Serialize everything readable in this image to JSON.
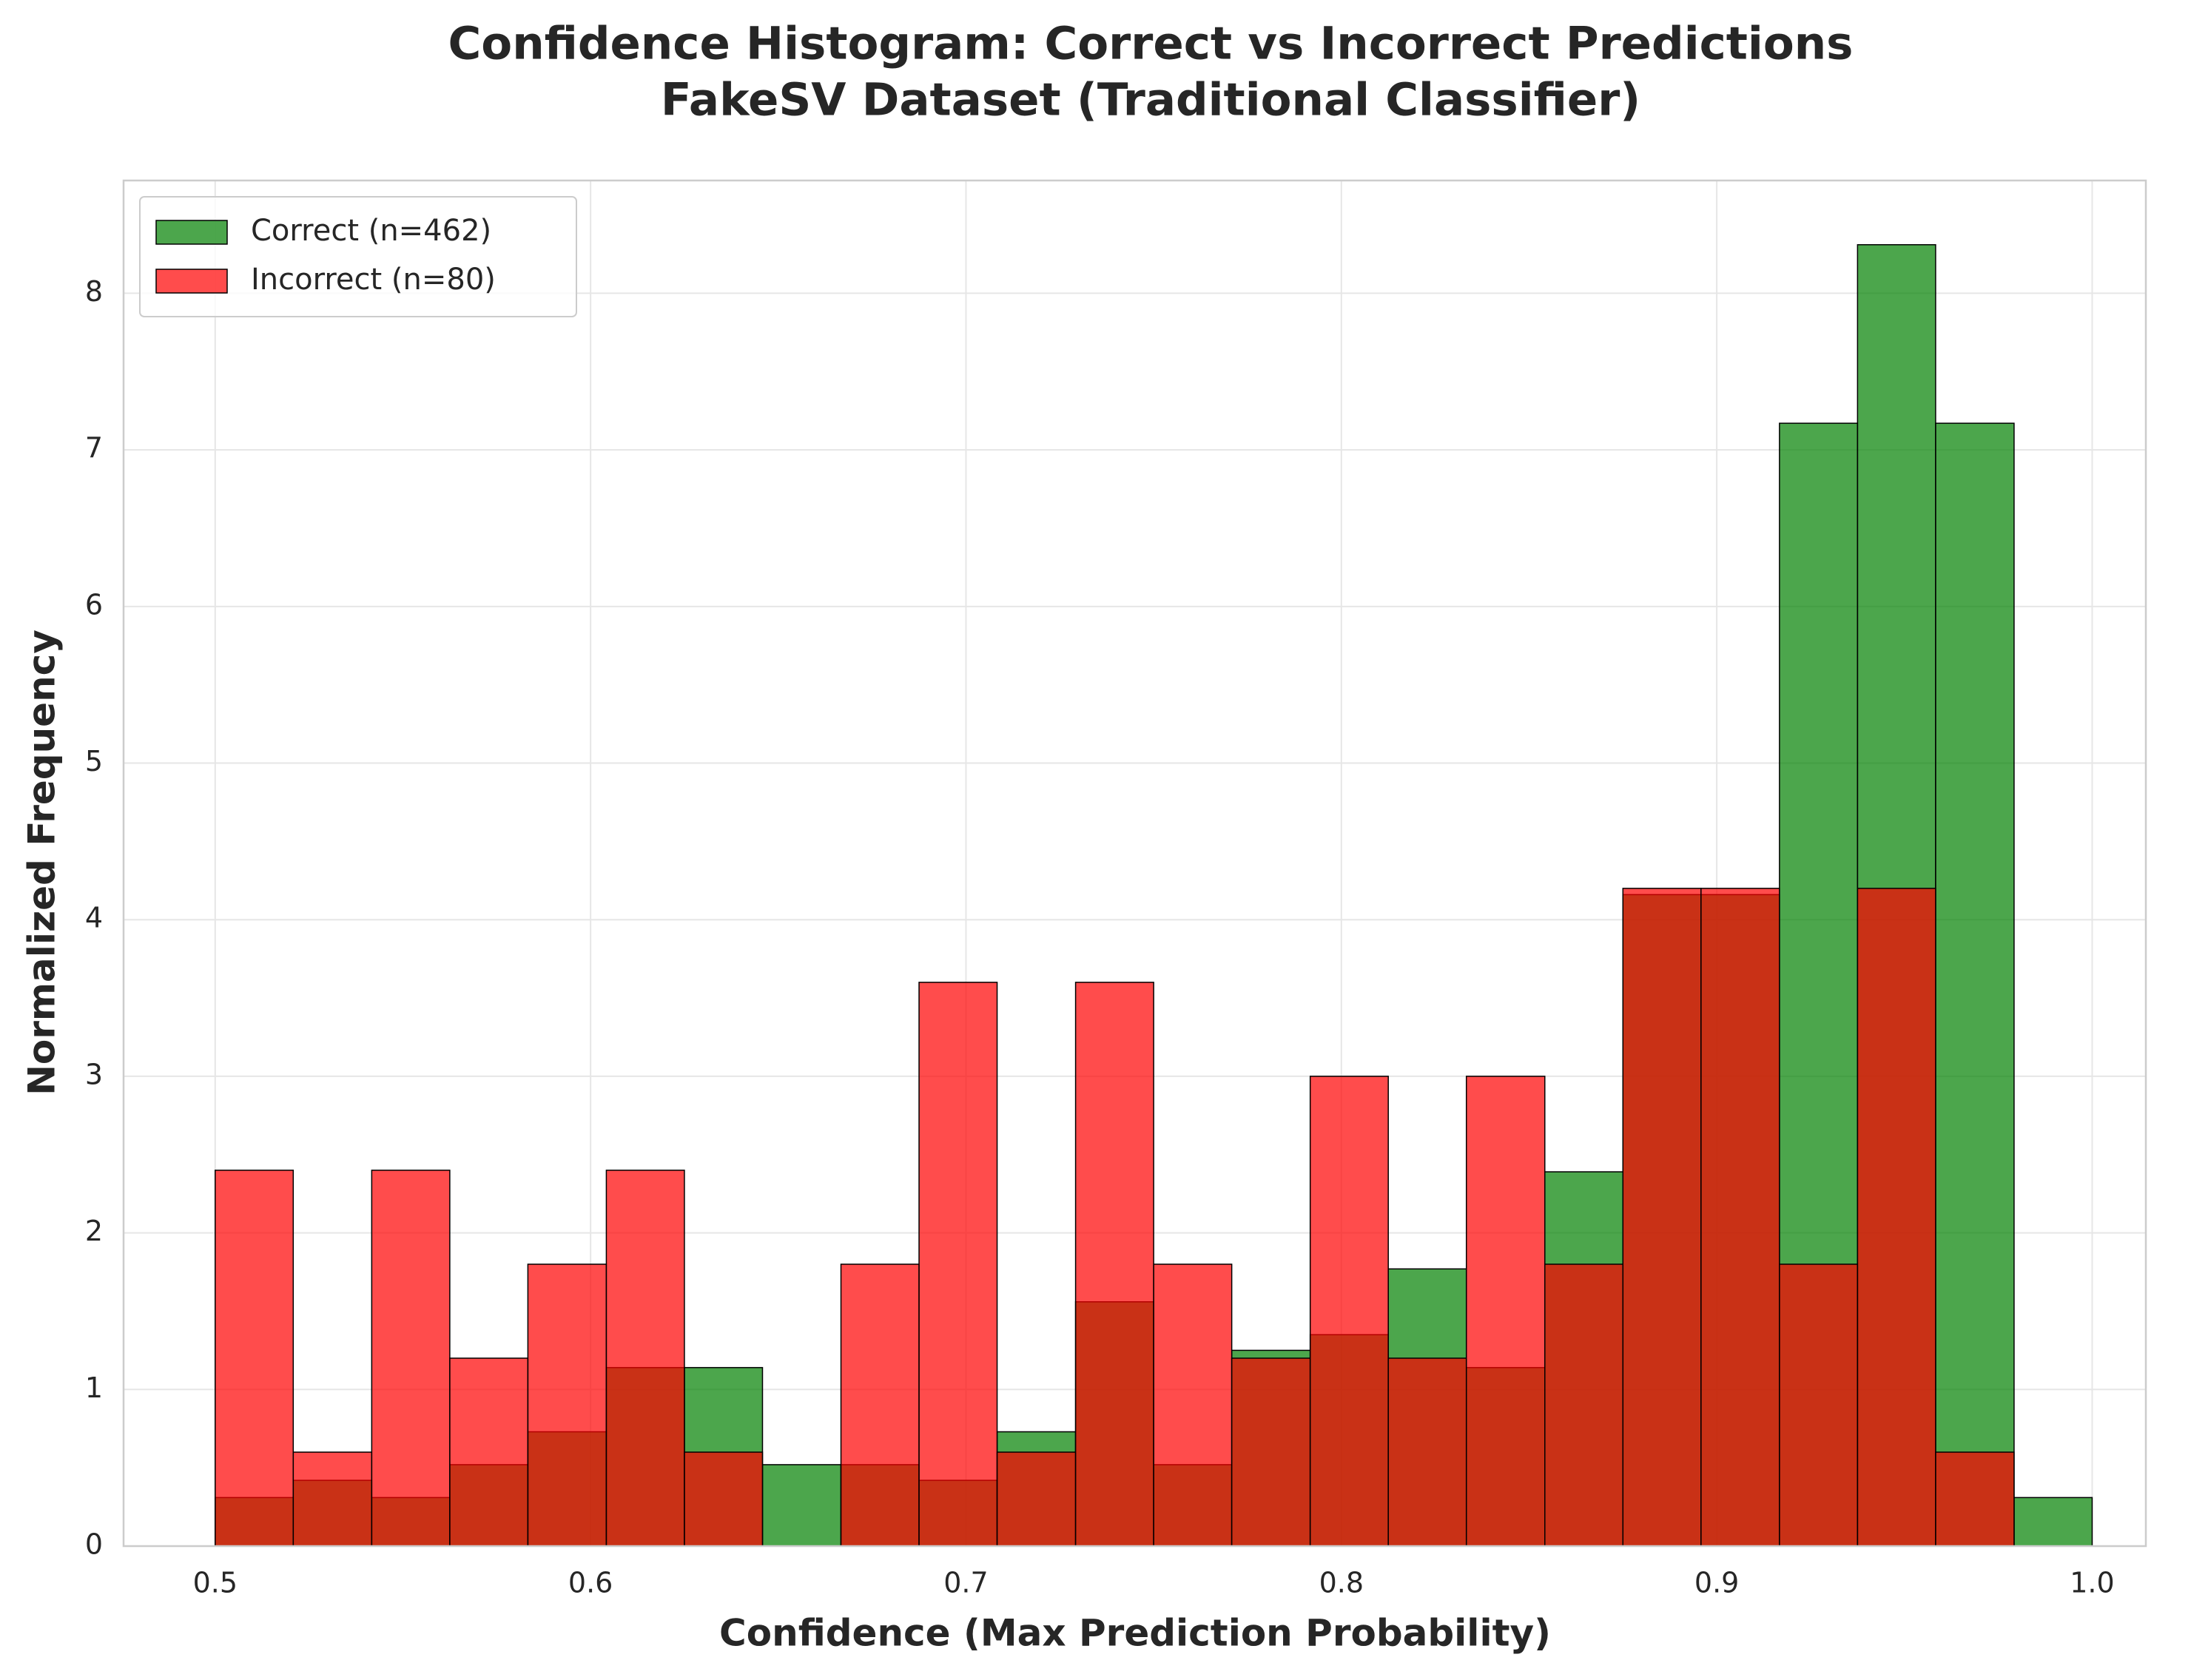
{
  "chart_data": {
    "type": "histogram",
    "title": [
      "Confidence Histogram: Correct vs Incorrect Predictions",
      "FakeSV Dataset (Traditional Classifier)"
    ],
    "xlabel": "Confidence (Max Prediction Probability)",
    "ylabel": "Normalized Frequency",
    "bins": [
      0.5,
      0.5208,
      0.5417,
      0.5625,
      0.5833,
      0.6042,
      0.625,
      0.6458,
      0.6667,
      0.6875,
      0.7083,
      0.7292,
      0.75,
      0.7708,
      0.7917,
      0.8125,
      0.8333,
      0.8542,
      0.875,
      0.8958,
      0.9167,
      0.9375,
      0.9583,
      0.9792,
      1.0
    ],
    "series": [
      {
        "name": "Correct (n=462)",
        "color": "#008000",
        "alpha": 0.7,
        "values": [
          0.31,
          0.42,
          0.31,
          0.52,
          0.73,
          1.14,
          1.14,
          0.52,
          0.52,
          0.42,
          0.73,
          1.56,
          0.52,
          1.25,
          1.35,
          1.77,
          1.14,
          2.39,
          4.16,
          4.16,
          7.17,
          8.31,
          7.17,
          0.31
        ]
      },
      {
        "name": "Incorrect (n=80)",
        "color": "#ff0000",
        "alpha": 0.7,
        "values": [
          2.4,
          0.6,
          2.4,
          1.2,
          1.8,
          2.4,
          0.6,
          0,
          1.8,
          3.6,
          0.6,
          3.6,
          1.8,
          1.2,
          3.0,
          1.2,
          3.0,
          1.8,
          4.2,
          4.2,
          1.8,
          4.2,
          0.6,
          0
        ]
      }
    ],
    "xlim": [
      0.4756,
      1.0143
    ],
    "ylim": [
      0,
      8.72
    ],
    "xticks": [
      0.5,
      0.6,
      0.7,
      0.8,
      0.9,
      {
        "value": 1,
        "label": "1.0"
      }
    ],
    "yticks": [
      0,
      1,
      2,
      3,
      4,
      5,
      6,
      7,
      8
    ],
    "grid": true,
    "legend": "upper left"
  }
}
